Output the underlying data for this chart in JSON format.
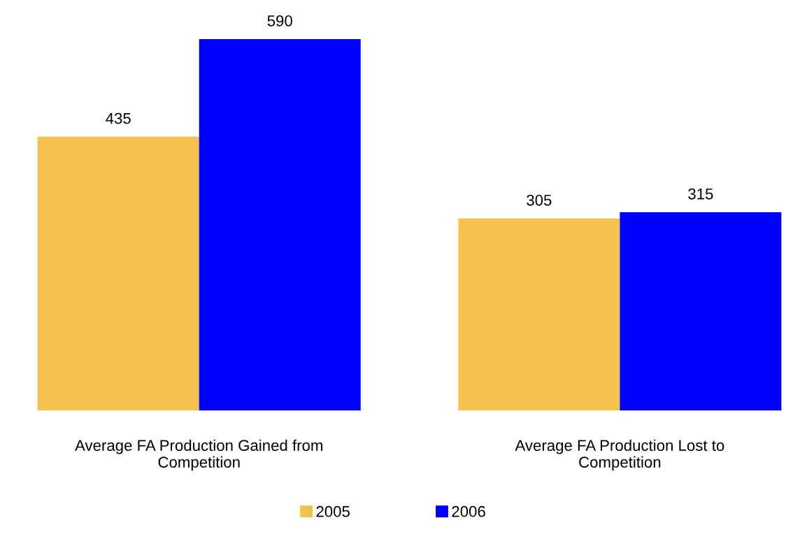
{
  "chart_data": {
    "type": "bar",
    "categories": [
      "Average FA Production Gained from Competition",
      "Average FA Production Lost to Competition"
    ],
    "series": [
      {
        "name": "2005",
        "color": "#f4c24c",
        "values": [
          435,
          305
        ]
      },
      {
        "name": "2006",
        "color": "#0000ff",
        "values": [
          590,
          315
        ]
      }
    ],
    "data_labels": true,
    "grid": false,
    "legend": "bottom"
  }
}
